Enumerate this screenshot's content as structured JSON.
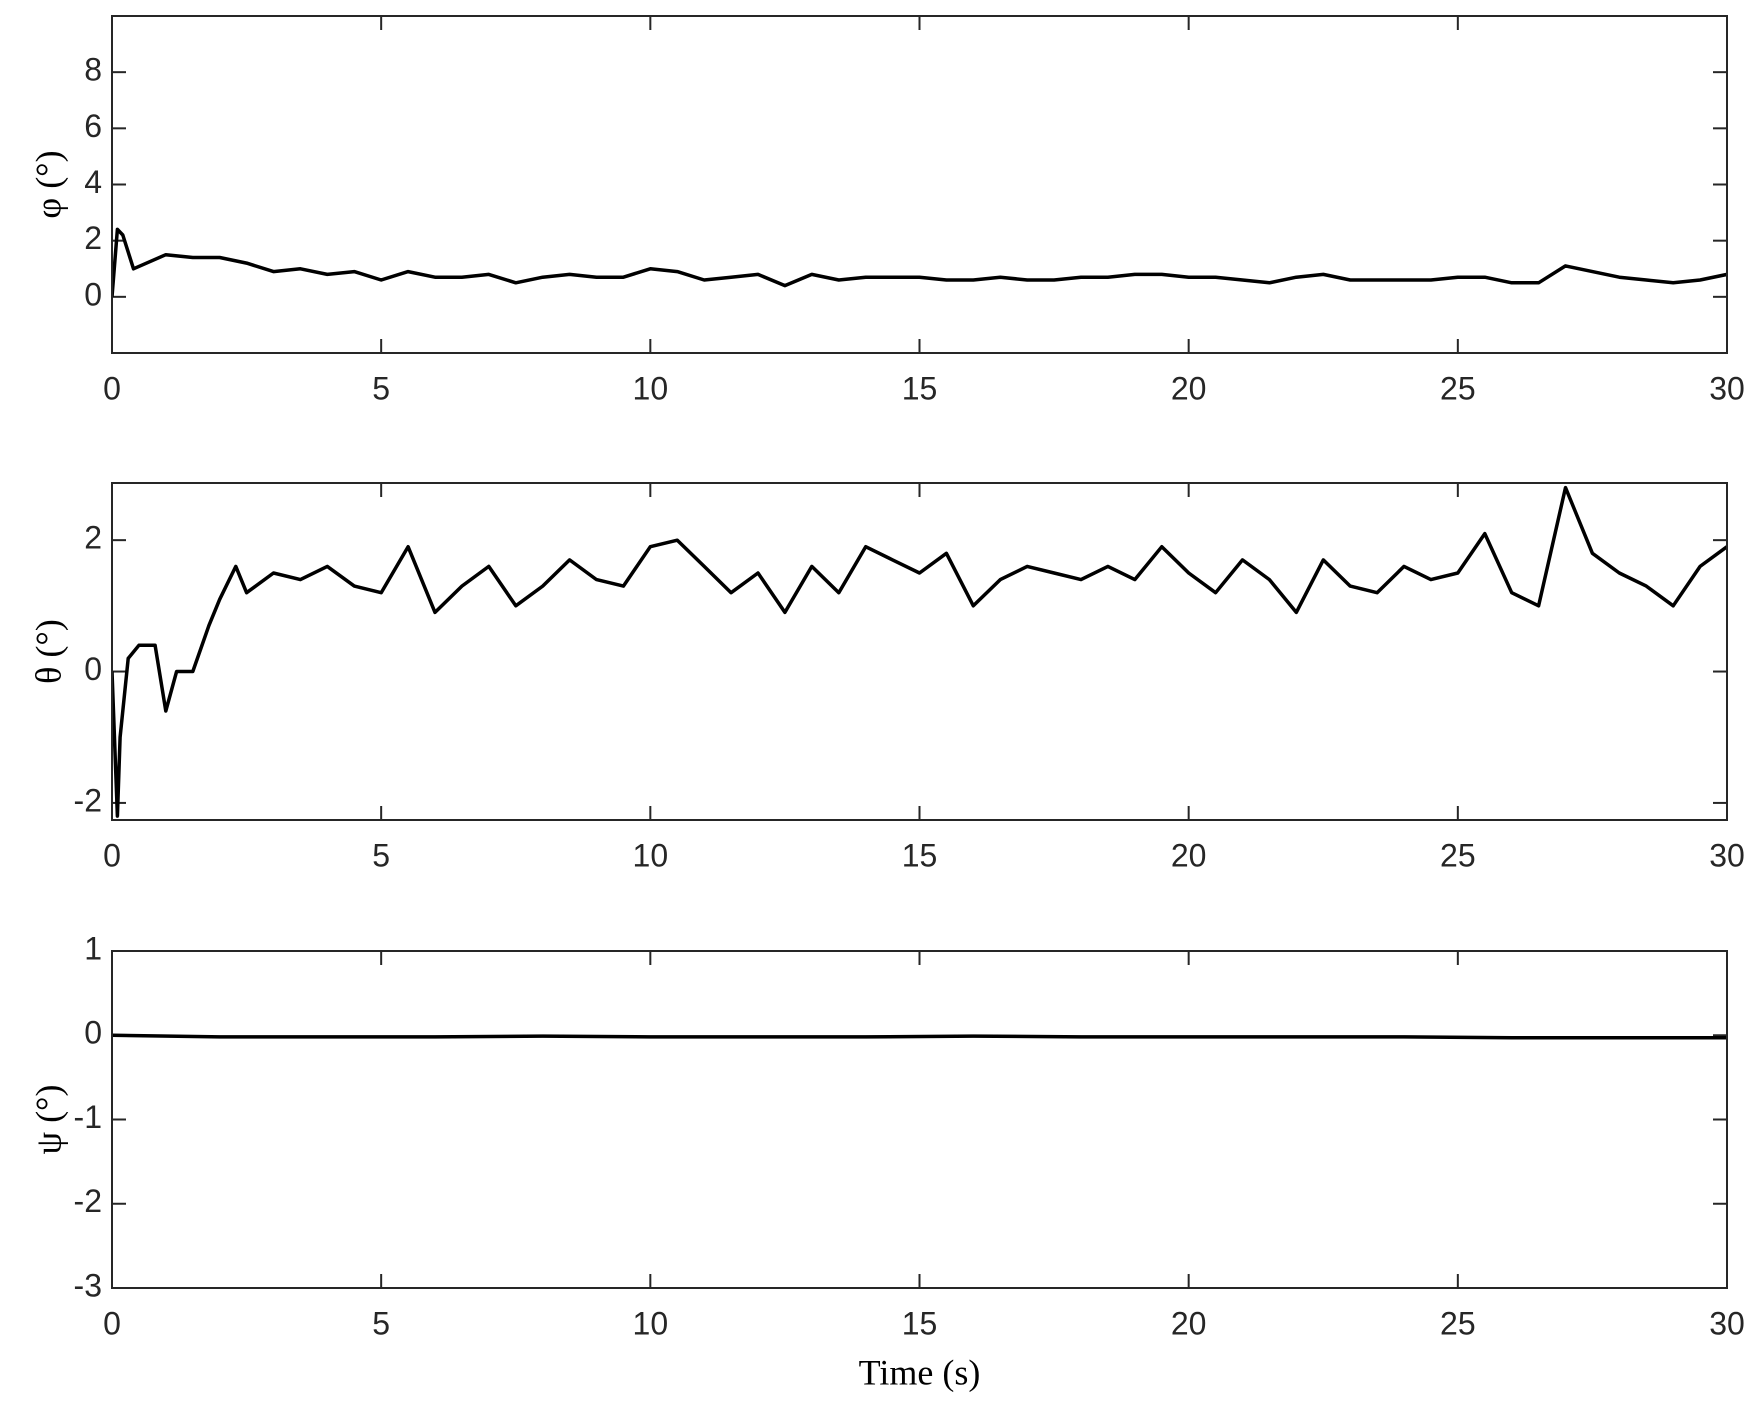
{
  "chart_data": [
    {
      "type": "line",
      "ylabel": "φ (°)",
      "color": "#000000",
      "x": [
        0,
        0.1,
        0.2,
        0.4,
        1,
        1.5,
        2,
        2.5,
        3,
        3.5,
        4,
        4.5,
        5,
        5.5,
        6,
        6.5,
        7,
        7.5,
        8,
        8.5,
        9,
        9.5,
        10,
        10.5,
        11,
        11.5,
        12,
        12.5,
        13,
        13.5,
        14,
        14.5,
        15,
        15.5,
        16,
        16.5,
        17,
        17.5,
        18,
        18.5,
        19,
        19.5,
        20,
        20.5,
        21,
        21.5,
        22,
        22.5,
        23,
        23.5,
        24,
        24.5,
        25,
        25.5,
        26,
        26.5,
        27,
        27.5,
        28,
        28.5,
        29,
        29.5,
        30
      ],
      "values": [
        0,
        2.4,
        2.2,
        1.0,
        1.5,
        1.4,
        1.4,
        1.2,
        0.9,
        1.0,
        0.8,
        0.9,
        0.6,
        0.9,
        0.7,
        0.7,
        0.8,
        0.5,
        0.7,
        0.8,
        0.7,
        0.7,
        1.0,
        0.9,
        0.6,
        0.7,
        0.8,
        0.4,
        0.8,
        0.6,
        0.7,
        0.7,
        0.7,
        0.6,
        0.6,
        0.7,
        0.6,
        0.6,
        0.7,
        0.7,
        0.8,
        0.8,
        0.7,
        0.7,
        0.6,
        0.5,
        0.7,
        0.8,
        0.6,
        0.6,
        0.6,
        0.6,
        0.7,
        0.7,
        0.5,
        0.5,
        1.1,
        0.9,
        0.7,
        0.6,
        0.5,
        0.6,
        0.8
      ],
      "xlim": [
        0,
        30
      ],
      "xticks": [
        0,
        5,
        10,
        15,
        20,
        25,
        30
      ],
      "ylim": [
        -2,
        10
      ],
      "yticks": [
        0,
        2,
        4,
        6,
        8
      ]
    },
    {
      "type": "line",
      "ylabel": "θ (°)",
      "color": "#000000",
      "x": [
        0,
        0.1,
        0.15,
        0.3,
        0.5,
        0.8,
        1.0,
        1.2,
        1.5,
        1.8,
        2.0,
        2.3,
        2.5,
        3,
        3.5,
        4,
        4.5,
        5,
        5.5,
        6,
        6.5,
        7,
        7.5,
        8,
        8.5,
        9,
        9.5,
        10,
        10.5,
        11,
        11.5,
        12,
        12.5,
        13,
        13.5,
        14,
        14.5,
        15,
        15.5,
        16,
        16.5,
        17,
        17.5,
        18,
        18.5,
        19,
        19.5,
        20,
        20.5,
        21,
        21.5,
        22,
        22.5,
        23,
        23.5,
        24,
        24.5,
        25,
        25.5,
        26,
        26.5,
        27,
        27.5,
        28,
        28.5,
        29,
        29.5,
        30
      ],
      "values": [
        0,
        -2.2,
        -1.0,
        0.2,
        0.4,
        0.4,
        -0.6,
        0.0,
        0.0,
        0.7,
        1.1,
        1.6,
        1.2,
        1.5,
        1.4,
        1.6,
        1.3,
        1.2,
        1.9,
        0.9,
        1.3,
        1.6,
        1.0,
        1.3,
        1.7,
        1.4,
        1.3,
        1.9,
        2.0,
        1.6,
        1.2,
        1.5,
        0.9,
        1.6,
        1.2,
        1.9,
        1.7,
        1.5,
        1.8,
        1.0,
        1.4,
        1.6,
        1.5,
        1.4,
        1.6,
        1.4,
        1.9,
        1.5,
        1.2,
        1.7,
        1.4,
        0.9,
        1.7,
        1.3,
        1.2,
        1.6,
        1.4,
        1.5,
        2.1,
        1.2,
        1.0,
        2.8,
        1.8,
        1.5,
        1.3,
        1.0,
        1.6,
        1.9
      ],
      "xlim": [
        0,
        30
      ],
      "xticks": [
        0,
        5,
        10,
        15,
        20,
        25,
        30
      ],
      "ylim": [
        -2.26,
        2.87
      ],
      "yticks": [
        -2,
        0,
        2
      ]
    },
    {
      "type": "line",
      "ylabel": "ψ (°)",
      "xlabel": "Time (s)",
      "color": "#000000",
      "x": [
        0,
        2,
        4,
        6,
        8,
        10,
        12,
        14,
        16,
        18,
        20,
        22,
        24,
        26,
        28,
        30
      ],
      "values": [
        0,
        -0.02,
        -0.02,
        -0.02,
        -0.01,
        -0.02,
        -0.02,
        -0.02,
        -0.01,
        -0.02,
        -0.02,
        -0.02,
        -0.02,
        -0.03,
        -0.03,
        -0.03
      ],
      "xlim": [
        0,
        30
      ],
      "xticks": [
        0,
        5,
        10,
        15,
        20,
        25,
        30
      ],
      "ylim": [
        -3,
        1
      ],
      "yticks": [
        -3,
        -2,
        -1,
        0,
        1
      ]
    }
  ]
}
